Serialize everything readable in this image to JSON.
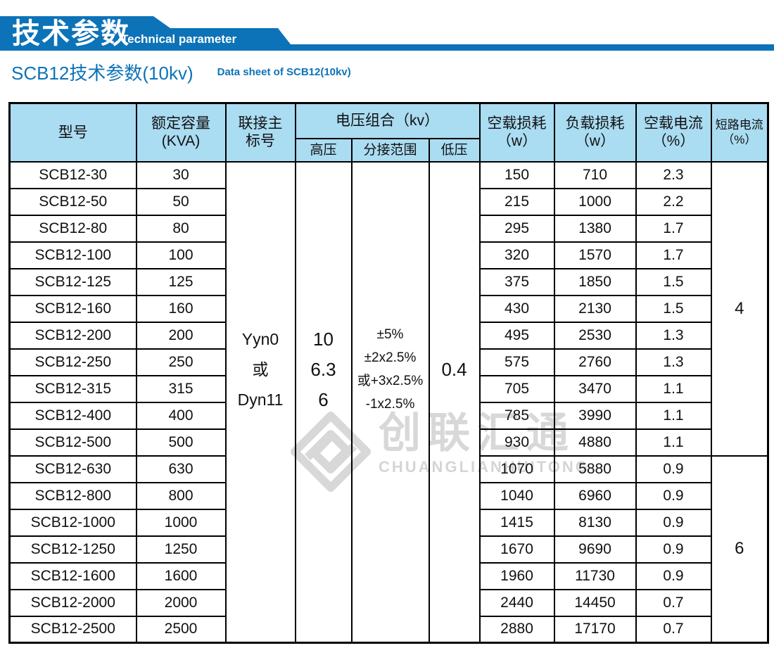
{
  "colors": {
    "banner_blue": "#0d73b8",
    "title_blue": "#0d73b8",
    "table_header_bg": "#aadcf2",
    "table_border": "#000000",
    "watermark_gray": "#d8d8d8"
  },
  "banner": {
    "title_zh": "技术参数",
    "title_en": "Technical parameter"
  },
  "section": {
    "title_zh": "SCB12技术参数(10kv)",
    "title_en": "Data sheet of SCB12(10kv)"
  },
  "watermark": {
    "name_zh": "创联汇通",
    "name_en": "CHUANGLIANHUITONG"
  },
  "table": {
    "headers": {
      "model": "型号",
      "capacity_l1": "额定容量",
      "capacity_l2": "(KVA)",
      "vector_l1": "联接主",
      "vector_l2": "标号",
      "voltage_group": "电压组合（kv）",
      "hv": "高压",
      "tapping": "分接范围",
      "lv": "低压",
      "no_load_loss_l1": "空载损耗",
      "no_load_loss_l2": "（w）",
      "load_loss_l1": "负载损耗",
      "load_loss_l2": "（w）",
      "no_load_current_l1": "空载电流",
      "no_load_current_l2": "（%）",
      "short_circuit_l1": "短路电流",
      "short_circuit_l2": "（%）"
    },
    "merged": {
      "vector_lines": [
        "Yyn0",
        "或",
        "Dyn11"
      ],
      "hv_lines": [
        "10",
        "6.3",
        "6"
      ],
      "tapping_lines": [
        "±5%",
        "±2x2.5%",
        "或+3x2.5%",
        "-1x2.5%"
      ],
      "lv": "0.4",
      "short_circuit_groups": [
        {
          "value": "4",
          "row_span": 11
        },
        {
          "value": "6",
          "row_span": 7
        }
      ]
    },
    "rows": [
      {
        "model": "SCB12-30",
        "capacity": "30",
        "no_load_loss": "150",
        "load_loss": "710",
        "no_load_current": "2.3"
      },
      {
        "model": "SCB12-50",
        "capacity": "50",
        "no_load_loss": "215",
        "load_loss": "1000",
        "no_load_current": "2.2"
      },
      {
        "model": "SCB12-80",
        "capacity": "80",
        "no_load_loss": "295",
        "load_loss": "1380",
        "no_load_current": "1.7"
      },
      {
        "model": "SCB12-100",
        "capacity": "100",
        "no_load_loss": "320",
        "load_loss": "1570",
        "no_load_current": "1.7"
      },
      {
        "model": "SCB12-125",
        "capacity": "125",
        "no_load_loss": "375",
        "load_loss": "1850",
        "no_load_current": "1.5"
      },
      {
        "model": "SCB12-160",
        "capacity": "160",
        "no_load_loss": "430",
        "load_loss": "2130",
        "no_load_current": "1.5"
      },
      {
        "model": "SCB12-200",
        "capacity": "200",
        "no_load_loss": "495",
        "load_loss": "2530",
        "no_load_current": "1.3"
      },
      {
        "model": "SCB12-250",
        "capacity": "250",
        "no_load_loss": "575",
        "load_loss": "2760",
        "no_load_current": "1.3"
      },
      {
        "model": "SCB12-315",
        "capacity": "315",
        "no_load_loss": "705",
        "load_loss": "3470",
        "no_load_current": "1.1"
      },
      {
        "model": "SCB12-400",
        "capacity": "400",
        "no_load_loss": "785",
        "load_loss": "3990",
        "no_load_current": "1.1"
      },
      {
        "model": "SCB12-500",
        "capacity": "500",
        "no_load_loss": "930",
        "load_loss": "4880",
        "no_load_current": "1.1"
      },
      {
        "model": "SCB12-630",
        "capacity": "630",
        "no_load_loss": "1070",
        "load_loss": "5880",
        "no_load_current": "0.9"
      },
      {
        "model": "SCB12-800",
        "capacity": "800",
        "no_load_loss": "1040",
        "load_loss": "6960",
        "no_load_current": "0.9"
      },
      {
        "model": "SCB12-1000",
        "capacity": "1000",
        "no_load_loss": "1415",
        "load_loss": "8130",
        "no_load_current": "0.9"
      },
      {
        "model": "SCB12-1250",
        "capacity": "1250",
        "no_load_loss": "1670",
        "load_loss": "9690",
        "no_load_current": "0.9"
      },
      {
        "model": "SCB12-1600",
        "capacity": "1600",
        "no_load_loss": "1960",
        "load_loss": "11730",
        "no_load_current": "0.9"
      },
      {
        "model": "SCB12-2000",
        "capacity": "2000",
        "no_load_loss": "2440",
        "load_loss": "14450",
        "no_load_current": "0.7"
      },
      {
        "model": "SCB12-2500",
        "capacity": "2500",
        "no_load_loss": "2880",
        "load_loss": "17170",
        "no_load_current": "0.7"
      }
    ]
  }
}
